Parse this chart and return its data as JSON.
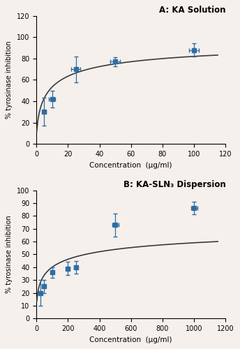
{
  "panel_A": {
    "title": "A: KA Solution",
    "x": [
      5,
      10,
      25,
      50,
      100
    ],
    "y": [
      30,
      42,
      70,
      77,
      88
    ],
    "xerr": [
      1,
      2,
      3,
      3,
      3
    ],
    "yerr": [
      13,
      8,
      12,
      4,
      6
    ],
    "xlim": [
      0,
      120
    ],
    "ylim": [
      0,
      120
    ],
    "xticks": [
      0,
      20,
      40,
      60,
      80,
      100,
      120
    ],
    "yticks": [
      0,
      20,
      40,
      60,
      80,
      100,
      120
    ],
    "xlabel": "Concentration  (µg/ml)",
    "ylabel": "% tyrosinase inhibition",
    "fit_xmax": 115,
    "hill_Vmax": 100,
    "hill_K": 8.0,
    "hill_n": 0.6
  },
  "panel_B": {
    "title": "B: KA-SLN₃ Dispersion",
    "x": [
      25,
      50,
      100,
      200,
      250,
      500,
      1000
    ],
    "y": [
      20,
      25,
      36,
      39,
      40,
      73,
      86
    ],
    "xerr": [
      3,
      5,
      5,
      10,
      10,
      20,
      20
    ],
    "yerr": [
      10,
      5,
      4,
      5,
      5,
      9,
      5
    ],
    "xlim": [
      0,
      1200
    ],
    "ylim": [
      0,
      100
    ],
    "xticks": [
      0,
      200,
      400,
      600,
      800,
      1000,
      1200
    ],
    "yticks": [
      0,
      10,
      20,
      30,
      40,
      50,
      60,
      70,
      80,
      90,
      100
    ],
    "xlabel": "Concentration  (µg/ml)",
    "ylabel": "% tyrosinase inhibition",
    "fit_xmax": 1150,
    "hill_Vmax": 80,
    "hill_K": 100,
    "hill_n": 0.45
  },
  "marker_color": "#2E6DA4",
  "marker_size": 4,
  "curve_color": "#3a3a3a",
  "curve_lw": 1.2,
  "elinewidth": 0.9,
  "capsize": 2.0,
  "bg_color": "#f5f0eb"
}
